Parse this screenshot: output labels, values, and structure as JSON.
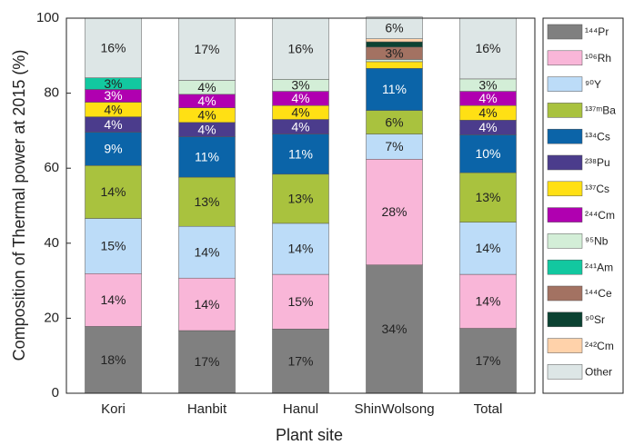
{
  "chart_data": {
    "type": "stacked_bar",
    "x_label": "Plant site",
    "y_label": "Composition of Thermal power at 2015 (%)",
    "categories": [
      "Kori",
      "Hanbit",
      "Hanul",
      "ShinWolsong",
      "Total"
    ],
    "ylim": [
      0,
      100
    ],
    "yticks": [
      0,
      20,
      40,
      60,
      80,
      100
    ],
    "legend": "right",
    "series": [
      {
        "name": "¹⁴⁴Pr",
        "color": "#808080",
        "values": [
          17.8,
          16.7,
          17.1,
          34.2,
          17.3
        ],
        "value_labels": [
          "18%",
          "17%",
          "17%",
          "34%",
          "17%"
        ]
      },
      {
        "name": "¹⁰⁶Rh",
        "color": "#f9b6d8",
        "values": [
          14.1,
          14.0,
          14.6,
          28.2,
          14.4
        ],
        "value_labels": [
          "14%",
          "14%",
          "15%",
          "28%",
          "14%"
        ]
      },
      {
        "name": "⁹⁰Y",
        "color": "#bcdcf8",
        "values": [
          14.7,
          13.8,
          13.6,
          6.7,
          13.9
        ],
        "value_labels": [
          "15%",
          "14%",
          "14%",
          "7%",
          "14%"
        ]
      },
      {
        "name": "¹³⁷ᵐBa",
        "color": "#a9c23e",
        "values": [
          14.1,
          13.1,
          13.1,
          6.3,
          13.2
        ],
        "value_labels": [
          "14%",
          "13%",
          "13%",
          "6%",
          "13%"
        ]
      },
      {
        "name": "¹³⁴Cs",
        "color": "#0b64a8",
        "values": [
          8.9,
          10.8,
          10.7,
          11.2,
          10.1
        ],
        "value_labels": [
          "9%",
          "11%",
          "11%",
          "11%",
          "10%"
        ]
      },
      {
        "name": "²³⁸Pu",
        "color": "#4b3c8c",
        "values": [
          4.1,
          3.8,
          3.9,
          0,
          3.9
        ],
        "value_labels": [
          "4%",
          "4%",
          "4%",
          null,
          "4%"
        ]
      },
      {
        "name": "¹³⁷Cs",
        "color": "#ffe014",
        "values": [
          3.9,
          3.9,
          3.7,
          1.8,
          3.9
        ],
        "value_labels": [
          "4%",
          "4%",
          "4%",
          null,
          "4%"
        ]
      },
      {
        "name": "²⁴⁴Cm",
        "color": "#b000b0",
        "values": [
          3.4,
          3.6,
          3.8,
          0,
          3.8
        ],
        "value_labels": [
          "3%",
          "4%",
          "4%",
          null,
          "4%"
        ]
      },
      {
        "name": "⁹⁵Nb",
        "color": "#d3eed7",
        "values": [
          0,
          3.7,
          3.2,
          0.6,
          3.3
        ],
        "value_labels": [
          null,
          "4%",
          "3%",
          null,
          "3%"
        ]
      },
      {
        "name": "²⁴¹Am",
        "color": "#12c8a0",
        "values": [
          3.1,
          0,
          0,
          0,
          0
        ],
        "value_labels": [
          "3%",
          null,
          null,
          null,
          null
        ]
      },
      {
        "name": "¹⁴⁴Ce",
        "color": "#a37262",
        "values": [
          0,
          0,
          0,
          3.3,
          0
        ],
        "value_labels": [
          null,
          null,
          null,
          "3%",
          null
        ]
      },
      {
        "name": "⁹⁰Sr",
        "color": "#0b4232",
        "values": [
          0,
          0,
          0,
          1.4,
          0
        ],
        "value_labels": [
          null,
          null,
          null,
          null,
          null
        ]
      },
      {
        "name": "²⁴²Cm",
        "color": "#ffd2aa",
        "values": [
          0,
          0,
          0,
          0.8,
          0
        ],
        "value_labels": [
          null,
          null,
          null,
          null,
          null
        ]
      },
      {
        "name": "Other",
        "color": "#dde6e6",
        "values": [
          15.9,
          16.6,
          16.3,
          5.8,
          16.2
        ],
        "value_labels": [
          "16%",
          "17%",
          "16%",
          "6%",
          "16%"
        ]
      }
    ]
  }
}
